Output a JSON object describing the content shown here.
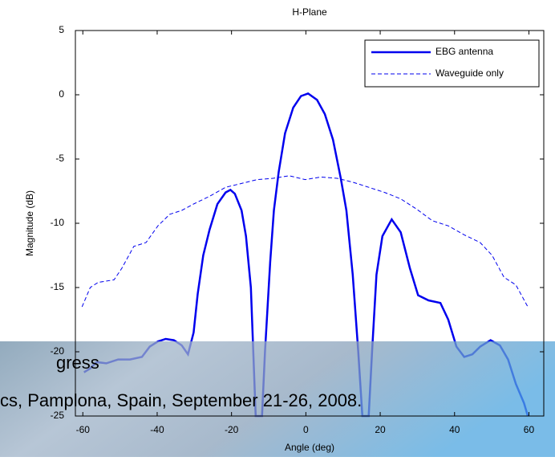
{
  "chart_data": {
    "type": "line",
    "title": "H-Plane",
    "x_label": "Angle (deg)",
    "y_label": "Magnitude (dB)",
    "xlim": [
      -62,
      64
    ],
    "ylim": [
      -25,
      5
    ],
    "xticks": [
      -60,
      -40,
      -20,
      0,
      20,
      40,
      60
    ],
    "yticks": [
      -25,
      -20,
      -15,
      -10,
      -5,
      0,
      5
    ],
    "legend_position": "upper right",
    "series": [
      {
        "name": "EBG antenna",
        "color": "#0000ee",
        "dash": "solid",
        "x": [
          -59.7,
          -58,
          -56.3,
          -53.7,
          -50.5,
          -47.3,
          -44.1,
          -42,
          -39.8,
          -37.7,
          -35.5,
          -33.4,
          -31.7,
          -30.2,
          -29.1,
          -27.6,
          -25.9,
          -23.8,
          -21.6,
          -20.3,
          -19.1,
          -17.3,
          -16.1,
          -14.8,
          -13.5,
          -11.8,
          -11,
          -9.6,
          -8.6,
          -7.3,
          -5.6,
          -3.4,
          -1.3,
          0.6,
          3,
          5.1,
          7.3,
          9.4,
          10.9,
          12.6,
          14.1,
          15.2,
          16.9,
          17.8,
          19,
          20.6,
          23.1,
          25.5,
          28,
          30.2,
          33,
          36.2,
          38.3,
          40.5,
          42.6,
          44.8,
          46.9,
          49.7,
          52.2,
          54.4,
          56.5,
          58.7,
          59.7
        ],
        "values": [
          -21.6,
          -21.3,
          -20.8,
          -20.9,
          -20.6,
          -20.6,
          -20.4,
          -19.6,
          -19.2,
          -19.0,
          -19.1,
          -19.5,
          -20.2,
          -18.5,
          -15.5,
          -12.5,
          -10.5,
          -8.5,
          -7.6,
          -7.4,
          -7.7,
          -9,
          -11,
          -15,
          -25,
          -25,
          -20,
          -13,
          -9,
          -6,
          -3,
          -1,
          -0.1,
          0.1,
          -0.4,
          -1.5,
          -3.5,
          -6.5,
          -9,
          -14,
          -20,
          -25,
          -25,
          -20,
          -14,
          -11,
          -9.7,
          -10.7,
          -13.5,
          -15.6,
          -16,
          -16.2,
          -17.5,
          -19.6,
          -20.4,
          -20.2,
          -19.6,
          -19.1,
          -19.5,
          -20.6,
          -22.5,
          -24,
          -25
        ]
      },
      {
        "name": "Waveguide only",
        "color": "#0000ee",
        "dash": "dashed",
        "x": [
          -60.2,
          -58,
          -55.9,
          -51.6,
          -49.5,
          -46.3,
          -43,
          -39.8,
          -36.6,
          -33.4,
          -30.2,
          -25.9,
          -21.6,
          -17.3,
          -13.1,
          -8.8,
          -4.5,
          -0.2,
          4.1,
          8.4,
          12.6,
          16.9,
          21.2,
          25.5,
          29.8,
          34,
          38.3,
          42.6,
          46.9,
          50.1,
          53.3,
          56.5,
          59.7
        ],
        "values": [
          -16.5,
          -15,
          -14.6,
          -14.4,
          -13.5,
          -11.8,
          -11.5,
          -10.2,
          -9.3,
          -9.0,
          -8.5,
          -7.9,
          -7.2,
          -6.9,
          -6.6,
          -6.5,
          -6.3,
          -6.6,
          -6.4,
          -6.5,
          -6.8,
          -7.2,
          -7.6,
          -8.1,
          -8.9,
          -9.8,
          -10.2,
          -10.9,
          -11.5,
          -12.5,
          -14.2,
          -14.8,
          -16.5
        ]
      }
    ]
  },
  "background_text": [
    "gress",
    "cs, Pamplona, Spain, September 21-26, 2008."
  ]
}
